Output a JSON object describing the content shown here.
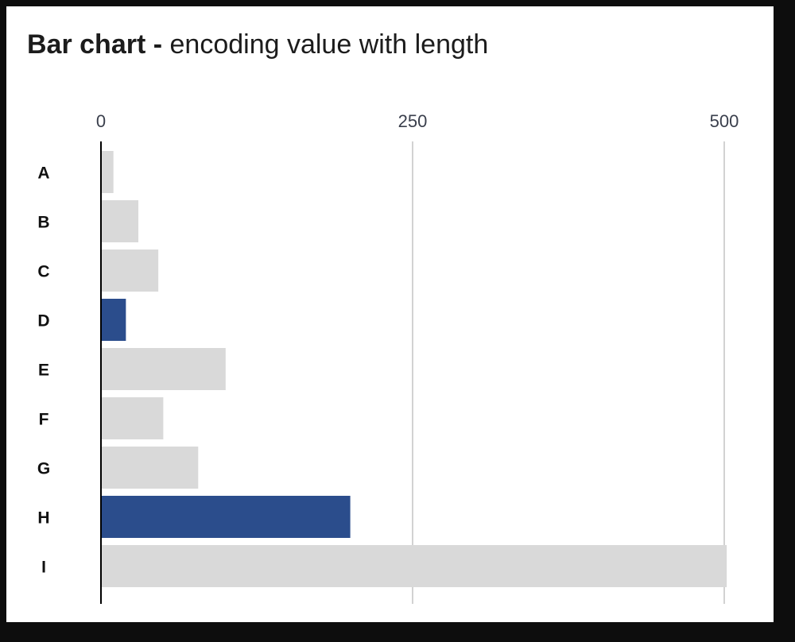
{
  "title": {
    "bold": "Bar chart -",
    "light": "encoding value with length"
  },
  "colors": {
    "highlight": "#2b4d8c",
    "muted": "#d9d9d9",
    "gridline": "#a6a6a6",
    "axis": "#000000"
  },
  "chart_data": {
    "type": "bar",
    "orientation": "horizontal",
    "categories": [
      "A",
      "B",
      "C",
      "D",
      "E",
      "F",
      "G",
      "H",
      "I"
    ],
    "values": [
      10,
      30,
      46,
      20,
      100,
      50,
      78,
      200,
      502
    ],
    "highlighted": [
      "D",
      "H"
    ],
    "xlim": [
      0,
      500
    ],
    "xticks": [
      0,
      250,
      500
    ],
    "xtick_labels": [
      "0",
      "250",
      "500"
    ],
    "xaxis_position": "top",
    "grid": true
  }
}
